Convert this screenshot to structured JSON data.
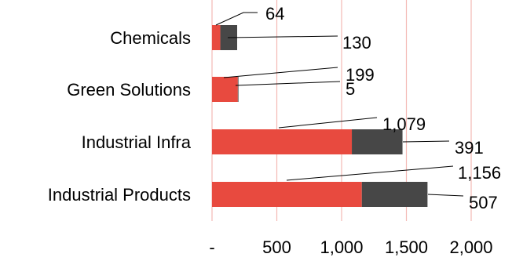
{
  "chart_data": {
    "type": "bar",
    "orientation": "horizontal",
    "stacked": true,
    "categories": [
      "Chemicals",
      "Green Solutions",
      "Industrial Infra",
      "Industrial Products"
    ],
    "series": [
      {
        "values": [
          64,
          199,
          1079,
          1156
        ],
        "labels": [
          "64",
          "199",
          "1,079",
          "1,156"
        ]
      },
      {
        "values": [
          130,
          5,
          391,
          507
        ],
        "labels": [
          "130",
          "5",
          "391",
          "507"
        ]
      }
    ],
    "xlim": [
      0,
      2000
    ],
    "xticks": [
      0,
      500,
      1000,
      1500,
      2000
    ],
    "xtick_labels": [
      "-",
      "500",
      "1,000",
      "1,500",
      "2,000"
    ],
    "grid": "vertical",
    "legend": "none",
    "colors": {
      "series0": "#e84a3f",
      "series1": "#474747",
      "grid": "#f4b9b4",
      "leader": "#000000"
    }
  }
}
